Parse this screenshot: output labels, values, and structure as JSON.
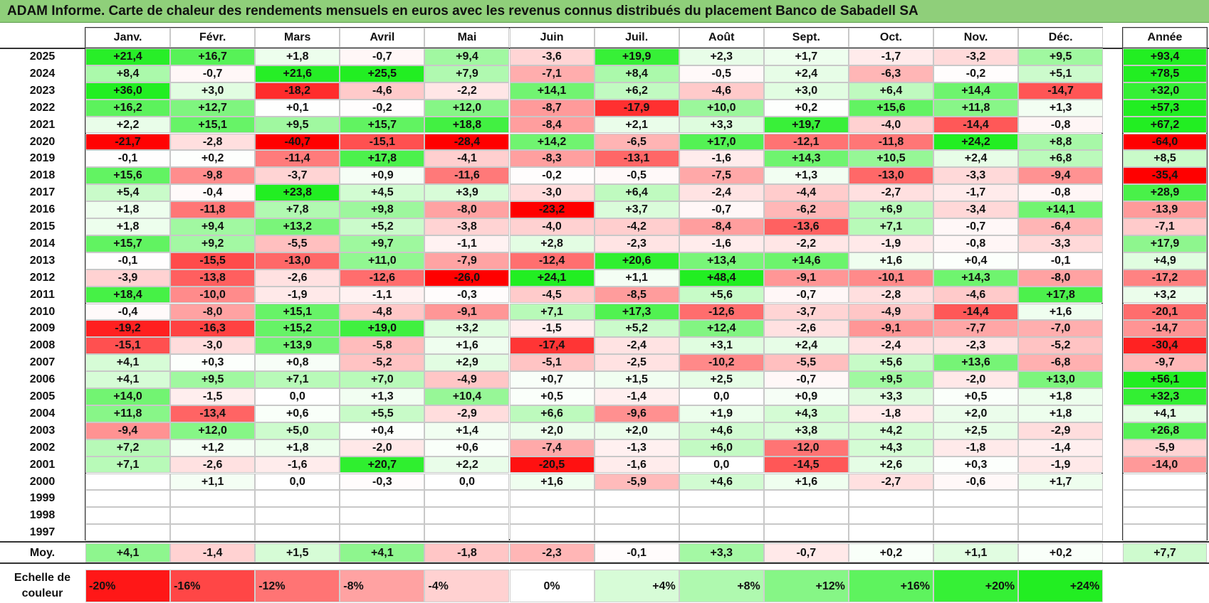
{
  "title": "ADAM Informe. Carte de chaleur des rendements mensuels en euros avec les revenus connus distribués du placement Banco de Sabadell SA",
  "colors": {
    "strong_red": "#ff0000",
    "strong_green": "#22ee22",
    "neutral": "#ffffff",
    "title_bg": "#8fcf7a"
  },
  "chart_data": {
    "type": "heatmap",
    "months": [
      "Janv.",
      "Févr.",
      "Mars",
      "Avril",
      "Mai",
      "Juin",
      "Juil.",
      "Août",
      "Sept.",
      "Oct.",
      "Nov.",
      "Déc."
    ],
    "year_column_label": "Année",
    "rows": [
      {
        "year": "2025",
        "values": [
          "+21,4",
          "+16,7",
          "+1,8",
          "-0,7",
          "+9,4",
          "-3,6",
          "+19,9",
          "+2,3",
          "+1,7",
          "-1,7",
          "-3,2",
          "+9,5"
        ],
        "annual": "+93,4"
      },
      {
        "year": "2024",
        "values": [
          "+8,4",
          "-0,7",
          "+21,6",
          "+25,5",
          "+7,9",
          "-7,1",
          "+8,4",
          "-0,5",
          "+2,4",
          "-6,3",
          "-0,2",
          "+5,1"
        ],
        "annual": "+78,5"
      },
      {
        "year": "2023",
        "values": [
          "+36,0",
          "+3,0",
          "-18,2",
          "-4,6",
          "-2,2",
          "+14,1",
          "+6,2",
          "-4,6",
          "+3,0",
          "+6,4",
          "+14,4",
          "-14,7"
        ],
        "annual": "+32,0"
      },
      {
        "year": "2022",
        "values": [
          "+16,2",
          "+12,7",
          "+0,1",
          "-0,2",
          "+12,0",
          "-8,7",
          "-17,9",
          "+10,0",
          "+0,2",
          "+15,6",
          "+11,8",
          "+1,3"
        ],
        "annual": "+57,3"
      },
      {
        "year": "2021",
        "values": [
          "+2,2",
          "+15,1",
          "+9,5",
          "+15,7",
          "+18,8",
          "-8,4",
          "+2,1",
          "+3,3",
          "+19,7",
          "-4,0",
          "-14,4",
          "-0,8"
        ],
        "annual": "+67,2"
      },
      {
        "year": "2020",
        "values": [
          "-21,7",
          "-2,8",
          "-40,7",
          "-15,1",
          "-28,4",
          "+14,2",
          "-6,5",
          "+17,0",
          "-12,1",
          "-11,8",
          "+24,2",
          "+8,8"
        ],
        "annual": "-64,0"
      },
      {
        "year": "2019",
        "values": [
          "-0,1",
          "+0,2",
          "-11,4",
          "+17,8",
          "-4,1",
          "-8,3",
          "-13,1",
          "-1,6",
          "+14,3",
          "+10,5",
          "+2,4",
          "+6,8"
        ],
        "annual": "+8,5"
      },
      {
        "year": "2018",
        "values": [
          "+15,6",
          "-9,8",
          "-3,7",
          "+0,9",
          "-11,6",
          "-0,2",
          "-0,5",
          "-7,5",
          "+1,3",
          "-13,0",
          "-3,3",
          "-9,4"
        ],
        "annual": "-35,4"
      },
      {
        "year": "2017",
        "values": [
          "+5,4",
          "-0,4",
          "+23,8",
          "+4,5",
          "+3,9",
          "-3,0",
          "+6,4",
          "-2,4",
          "-4,4",
          "-2,7",
          "-1,7",
          "-0,8"
        ],
        "annual": "+28,9"
      },
      {
        "year": "2016",
        "values": [
          "+1,8",
          "-11,8",
          "+7,8",
          "+9,8",
          "-8,0",
          "-23,2",
          "+3,7",
          "-0,7",
          "-6,2",
          "+6,9",
          "-3,4",
          "+14,1"
        ],
        "annual": "-13,9"
      },
      {
        "year": "2015",
        "values": [
          "+1,8",
          "+9,4",
          "+13,2",
          "+5,2",
          "-3,8",
          "-4,0",
          "-4,2",
          "-8,4",
          "-13,6",
          "+7,1",
          "-0,7",
          "-6,4"
        ],
        "annual": "-7,1"
      },
      {
        "year": "2014",
        "values": [
          "+15,7",
          "+9,2",
          "-5,5",
          "+9,7",
          "-1,1",
          "+2,8",
          "-2,3",
          "-1,6",
          "-2,2",
          "-1,9",
          "-0,8",
          "-3,3"
        ],
        "annual": "+17,9"
      },
      {
        "year": "2013",
        "values": [
          "-0,1",
          "-15,5",
          "-13,0",
          "+11,0",
          "-7,9",
          "-12,4",
          "+20,6",
          "+13,4",
          "+14,6",
          "+1,6",
          "+0,4",
          "-0,1"
        ],
        "annual": "+4,9"
      },
      {
        "year": "2012",
        "values": [
          "-3,9",
          "-13,8",
          "-2,6",
          "-12,6",
          "-26,0",
          "+24,1",
          "+1,1",
          "+48,4",
          "-9,1",
          "-10,1",
          "+14,3",
          "-8,0"
        ],
        "annual": "-17,2"
      },
      {
        "year": "2011",
        "values": [
          "+18,4",
          "-10,0",
          "-1,9",
          "-1,1",
          "-0,3",
          "-4,5",
          "-8,5",
          "+5,6",
          "-0,7",
          "-2,8",
          "-4,6",
          "+17,8"
        ],
        "annual": "+3,2"
      },
      {
        "year": "2010",
        "values": [
          "-0,4",
          "-8,0",
          "+15,1",
          "-4,8",
          "-9,1",
          "+7,1",
          "+17,3",
          "-12,6",
          "-3,7",
          "-4,9",
          "-14,4",
          "+1,6"
        ],
        "annual": "-20,1"
      },
      {
        "year": "2009",
        "values": [
          "-19,2",
          "-16,3",
          "+15,2",
          "+19,0",
          "+3,2",
          "-1,5",
          "+5,2",
          "+12,4",
          "-2,6",
          "-9,1",
          "-7,7",
          "-7,0"
        ],
        "annual": "-14,7"
      },
      {
        "year": "2008",
        "values": [
          "-15,1",
          "-3,0",
          "+13,9",
          "-5,8",
          "+1,6",
          "-17,4",
          "-2,4",
          "+3,1",
          "+2,4",
          "-2,4",
          "-2,3",
          "-5,2"
        ],
        "annual": "-30,4"
      },
      {
        "year": "2007",
        "values": [
          "+4,1",
          "+0,3",
          "+0,8",
          "-5,2",
          "+2,9",
          "-5,1",
          "-2,5",
          "-10,2",
          "-5,5",
          "+5,6",
          "+13,6",
          "-6,8"
        ],
        "annual": "-9,7"
      },
      {
        "year": "2006",
        "values": [
          "+4,1",
          "+9,5",
          "+7,1",
          "+7,0",
          "-4,9",
          "+0,7",
          "+1,5",
          "+2,5",
          "-0,7",
          "+9,5",
          "-2,0",
          "+13,0"
        ],
        "annual": "+56,1"
      },
      {
        "year": "2005",
        "values": [
          "+14,0",
          "-1,5",
          "0,0",
          "+1,3",
          "+10,4",
          "+0,5",
          "-1,4",
          "0,0",
          "+0,9",
          "+3,3",
          "+0,5",
          "+1,8"
        ],
        "annual": "+32,3"
      },
      {
        "year": "2004",
        "values": [
          "+11,8",
          "-13,4",
          "+0,6",
          "+5,5",
          "-2,9",
          "+6,6",
          "-9,6",
          "+1,9",
          "+4,3",
          "-1,8",
          "+2,0",
          "+1,8"
        ],
        "annual": "+4,1"
      },
      {
        "year": "2003",
        "values": [
          "-9,4",
          "+12,0",
          "+5,0",
          "+0,4",
          "+1,4",
          "+2,0",
          "+2,0",
          "+4,6",
          "+3,8",
          "+4,2",
          "+2,5",
          "-2,9"
        ],
        "annual": "+26,8"
      },
      {
        "year": "2002",
        "values": [
          "+7,2",
          "+1,2",
          "+1,8",
          "-2,0",
          "+0,6",
          "-7,4",
          "-1,3",
          "+6,0",
          "-12,0",
          "+4,3",
          "-1,8",
          "-1,4"
        ],
        "annual": "-5,9"
      },
      {
        "year": "2001",
        "values": [
          "+7,1",
          "-2,6",
          "-1,6",
          "+20,7",
          "+2,2",
          "-20,5",
          "-1,6",
          "0,0",
          "-14,5",
          "+2,6",
          "+0,3",
          "-1,9"
        ],
        "annual": "-14,0"
      },
      {
        "year": "2000",
        "values": [
          "",
          "+1,1",
          "0,0",
          "-0,3",
          "0,0",
          "+1,6",
          "-5,9",
          "+4,6",
          "+1,6",
          "-2,7",
          "-0,6",
          "+1,7"
        ],
        "annual": ""
      },
      {
        "year": "1999",
        "values": [
          "",
          "",
          "",
          "",
          "",
          "",
          "",
          "",
          "",
          "",
          "",
          ""
        ],
        "annual": ""
      },
      {
        "year": "1998",
        "values": [
          "",
          "",
          "",
          "",
          "",
          "",
          "",
          "",
          "",
          "",
          "",
          ""
        ],
        "annual": ""
      },
      {
        "year": "1997",
        "values": [
          "",
          "",
          "",
          "",
          "",
          "",
          "",
          "",
          "",
          "",
          "",
          ""
        ],
        "annual": ""
      }
    ],
    "average": {
      "label": "Moy.",
      "values": [
        "+4,1",
        "-1,4",
        "+1,5",
        "+4,1",
        "-1,8",
        "-2,3",
        "-0,1",
        "+3,3",
        "-0,7",
        "+0,2",
        "+1,1",
        "+0,2"
      ],
      "annual": "+7,7"
    },
    "scale": {
      "label_line1": "Echelle de",
      "label_line2": "couleur",
      "steps": [
        "-20%",
        "-16%",
        "-12%",
        "-8%",
        "-4%",
        "0%",
        "+4%",
        "+8%",
        "+12%",
        "+16%",
        "+20%",
        "+24%"
      ]
    }
  }
}
